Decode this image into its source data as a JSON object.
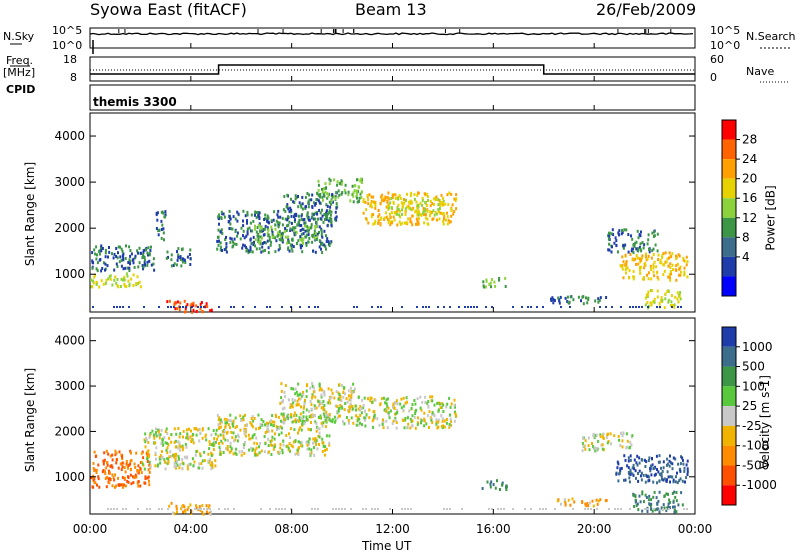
{
  "header": {
    "station": "Syowa East (fitACF)",
    "beam": "Beam 13",
    "date": "26/Feb/2009"
  },
  "top_panel": {
    "left_label": "N.Sky",
    "left_ticks": [
      "10^5",
      "10^0"
    ],
    "right_ticks": [
      "10^5",
      "10^0"
    ],
    "right_label": "N.Search"
  },
  "freq_panel": {
    "left_label_1": "Freq.",
    "left_label_2": "[MHz]",
    "left_ticks": [
      "18",
      "8"
    ],
    "right_ticks": [
      "60",
      "0"
    ],
    "right_label": "Nave"
  },
  "cpid_panel": {
    "label": "CPID",
    "program": "themis 3300"
  },
  "power_colorbar": {
    "title": "Power [dB]",
    "ticks": [
      "28",
      "24",
      "20",
      "16",
      "12",
      "8",
      "4"
    ],
    "colors": [
      "#ff0000",
      "#ff6400",
      "#ffa000",
      "#e6d200",
      "#8cd23c",
      "#3c9646",
      "#3c6e8c",
      "#1e3caa",
      "#0000ff"
    ]
  },
  "velocity_colorbar": {
    "title": "Velocity [m s-1]",
    "ticks": [
      "1000",
      "500",
      "100",
      "25",
      "-25",
      "-100",
      "-500",
      "-1000"
    ],
    "colors": [
      "#1e3caa",
      "#3c6e8c",
      "#3c9646",
      "#5ac83c",
      "#c8c8c8",
      "#f0b400",
      "#ff8c00",
      "#ff5000",
      "#ff0000"
    ]
  },
  "axes": {
    "ylabel": "Slant Range [km]",
    "yticks": [
      "4000",
      "3000",
      "2000",
      "1000"
    ],
    "xticks": [
      "00:00",
      "04:00",
      "08:00",
      "12:00",
      "16:00",
      "20:00",
      "00:00"
    ],
    "xlabel": "Time UT"
  },
  "chart_data": [
    {
      "type": "heatmap",
      "title": "Power",
      "x_unit": "hours UT",
      "xlim": [
        0,
        24
      ],
      "ylim": [
        180,
        4500
      ],
      "ylabel": "Slant Range [km]",
      "colorbar_label": "Power [dB]",
      "colorbar_ticks": [
        28,
        24,
        20,
        16,
        12,
        8,
        4
      ],
      "regions": [
        {
          "t0": 0.0,
          "t1": 2.6,
          "r0": 1100,
          "r1": 1650,
          "value_db": 8
        },
        {
          "t0": 0.0,
          "t1": 2.0,
          "r0": 750,
          "r1": 1050,
          "value_db": 16
        },
        {
          "t0": 2.6,
          "t1": 3.0,
          "r0": 1700,
          "r1": 2400,
          "value_db": 8
        },
        {
          "t0": 3.0,
          "t1": 4.8,
          "r0": 200,
          "r1": 450,
          "value_db": 28
        },
        {
          "t0": 3.0,
          "t1": 4.0,
          "r0": 1200,
          "r1": 1600,
          "value_db": 8
        },
        {
          "t0": 5.0,
          "t1": 9.6,
          "r0": 1500,
          "r1": 2400,
          "value_db": 8
        },
        {
          "t0": 6.5,
          "t1": 9.0,
          "r0": 1700,
          "r1": 2100,
          "value_db": 12
        },
        {
          "t0": 7.5,
          "t1": 9.8,
          "r0": 2200,
          "r1": 2800,
          "value_db": 8
        },
        {
          "t0": 9.0,
          "t1": 10.8,
          "r0": 2600,
          "r1": 3100,
          "value_db": 12
        },
        {
          "t0": 10.8,
          "t1": 14.5,
          "r0": 2100,
          "r1": 2800,
          "value_db": 20
        },
        {
          "t0": 11.8,
          "t1": 14.0,
          "r0": 2300,
          "r1": 2700,
          "value_db": 16
        },
        {
          "t0": 15.5,
          "t1": 16.5,
          "r0": 750,
          "r1": 950,
          "value_db": 12
        },
        {
          "t0": 18.0,
          "t1": 20.5,
          "r0": 380,
          "r1": 550,
          "value_db": 8
        },
        {
          "t0": 20.5,
          "t1": 22.5,
          "r0": 1500,
          "r1": 2000,
          "value_db": 8
        },
        {
          "t0": 21.0,
          "t1": 23.7,
          "r0": 900,
          "r1": 1500,
          "value_db": 20
        },
        {
          "t0": 22.0,
          "t1": 23.5,
          "r0": 300,
          "r1": 700,
          "value_db": 16
        }
      ]
    },
    {
      "type": "heatmap",
      "title": "Velocity",
      "x_unit": "hours UT",
      "xlim": [
        0,
        24
      ],
      "ylim": [
        180,
        4500
      ],
      "ylabel": "Slant Range [km]",
      "colorbar_label": "Velocity [m s-1]",
      "colorbar_ticks": [
        1000,
        500,
        100,
        25,
        -25,
        -100,
        -500,
        -1000
      ],
      "regions": [
        {
          "t0": 0.0,
          "t1": 2.4,
          "r0": 800,
          "r1": 1600,
          "value_ms": -500
        },
        {
          "t0": 2.0,
          "t1": 5.0,
          "r0": 1200,
          "r1": 2100,
          "value_ms": 0
        },
        {
          "t0": 3.0,
          "t1": 4.8,
          "r0": 200,
          "r1": 450,
          "value_ms": -100
        },
        {
          "t0": 5.0,
          "t1": 9.5,
          "r0": 1500,
          "r1": 2400,
          "value_ms": 0
        },
        {
          "t0": 7.5,
          "t1": 10.5,
          "r0": 2200,
          "r1": 3100,
          "value_ms": 0
        },
        {
          "t0": 10.5,
          "t1": 14.5,
          "r0": 2100,
          "r1": 2800,
          "value_ms": 0
        },
        {
          "t0": 15.5,
          "t1": 16.5,
          "r0": 750,
          "r1": 950,
          "value_ms": 500
        },
        {
          "t0": 18.5,
          "t1": 20.5,
          "r0": 380,
          "r1": 550,
          "value_ms": -100
        },
        {
          "t0": 19.5,
          "t1": 21.5,
          "r0": 1600,
          "r1": 2000,
          "value_ms": 0
        },
        {
          "t0": 20.8,
          "t1": 23.7,
          "r0": 900,
          "r1": 1500,
          "value_ms": 1000
        },
        {
          "t0": 21.5,
          "t1": 23.5,
          "r0": 250,
          "r1": 700,
          "value_ms": 500
        }
      ]
    }
  ]
}
